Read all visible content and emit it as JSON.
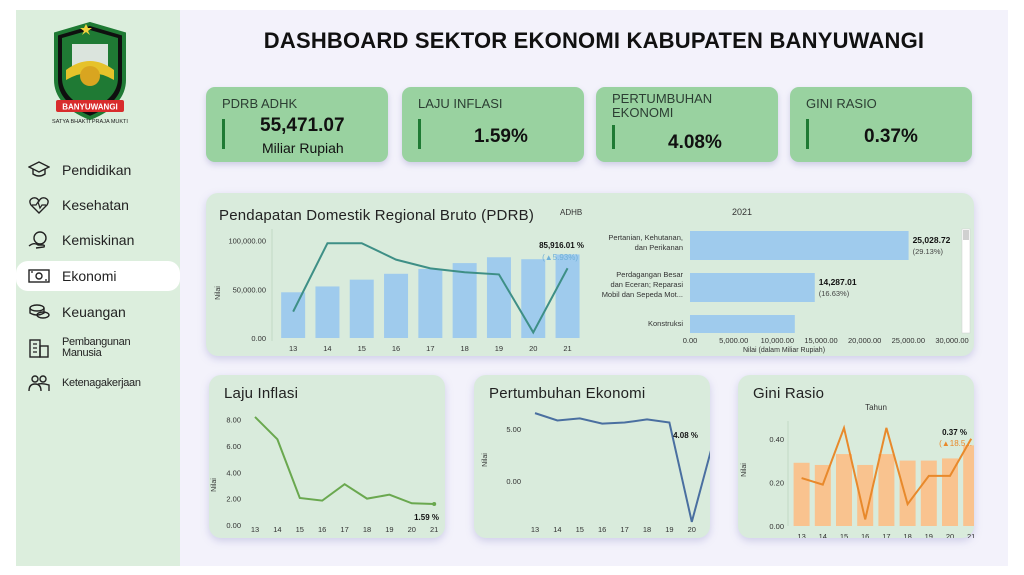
{
  "title": "DASHBOARD SEKTOR EKONOMI KABUPATEN BANYUWANGI",
  "logo": {
    "banner": "BANYUWANGI",
    "motto": "SATYA BHAKTI PRAJA MUKTI"
  },
  "sidebar": {
    "items": [
      {
        "label": "Pendidikan",
        "icon": "graduation-cap-icon"
      },
      {
        "label": "Kesehatan",
        "icon": "heart-pulse-icon"
      },
      {
        "label": "Kemiskinan",
        "icon": "hand-coins-icon"
      },
      {
        "label": "Ekonomi",
        "icon": "money-icon",
        "active": true
      },
      {
        "label": "Keuangan",
        "icon": "coins-stack-icon"
      },
      {
        "label_line1": "Pembangunan",
        "label_line2": "Manusia",
        "icon": "building-icon"
      },
      {
        "label": "Ketenagakerjaan",
        "icon": "people-icon"
      }
    ]
  },
  "kpis": [
    {
      "title": "PDRB ADHK",
      "value": "55,471.07",
      "unit": "Miliar Rupiah"
    },
    {
      "title": "LAJU INFLASI",
      "value": "1.59%"
    },
    {
      "title_line1": "PERTUMBUHAN",
      "title_line2": "EKONOMI",
      "value": "4.08%"
    },
    {
      "title": "GINI RASIO",
      "value": "0.37%"
    }
  ],
  "colors": {
    "accent_green": "#99d2a0",
    "card_bg": "#d9ebdc",
    "bar_blue": "#9fcbed",
    "line_teal": "#3e8f86",
    "line_green": "#6aa84f",
    "line_navy": "#4a6fa0",
    "bar_orange": "#f9c38f",
    "line_orange": "#e8892b"
  },
  "chart_data": [
    {
      "id": "pdrb",
      "type": "bar",
      "title": "Pendapatan Domestik Regional Bruto (PDRB)",
      "legend_label": "ADHB",
      "ylabel": "Nilai",
      "categories": [
        "13",
        "14",
        "15",
        "16",
        "17",
        "18",
        "19",
        "20",
        "21"
      ],
      "series": [
        {
          "name": "Nilai",
          "values": [
            47000,
            53000,
            60000,
            66000,
            71000,
            77000,
            83000,
            81000,
            85916.01
          ]
        },
        {
          "name": "Pertumbuhan",
          "type": "line",
          "values": [
            -2,
            10.5,
            10.5,
            7.5,
            5.9,
            5.2,
            4.8,
            -5.8,
            5.93
          ]
        }
      ],
      "yticks": [
        "100,000.00",
        "50,000.00",
        "0.00"
      ],
      "ylim": [
        0,
        110000
      ],
      "annotation": {
        "value": "85,916.01 %",
        "change": "(▲5.93%)"
      }
    },
    {
      "id": "sektor",
      "type": "bar",
      "orientation": "horizontal",
      "title": "2021",
      "xlabel": "Nilai (dalam Miliar Rupiah)",
      "categories": [
        {
          "line1": "Pertanian, Kehutanan,",
          "line2": "dan Perikanan"
        },
        {
          "line1": "Perdagangan Besar",
          "line2": "dan Eceran; Reparasi",
          "line3": "Mobil dan Sepeda Mot..."
        },
        {
          "line1": "Konstruksi"
        }
      ],
      "values": [
        25028.72,
        14287.01,
        12000
      ],
      "value_labels": [
        "25,028.72",
        "14,287.01",
        ""
      ],
      "share_labels": [
        "(29.13%)",
        "(16.63%)",
        ""
      ],
      "xticks": [
        "0.00",
        "5,000.00",
        "10,000.00",
        "15,000.00",
        "20,000.00",
        "25,000.00",
        "30,000.00"
      ],
      "xlim": [
        0,
        30000
      ]
    },
    {
      "id": "inflasi",
      "type": "line",
      "title": "Laju Inflasi",
      "ylabel": "Nilai",
      "categories": [
        "13",
        "14",
        "15",
        "16",
        "17",
        "18",
        "19",
        "20",
        "21"
      ],
      "values": [
        8.2,
        6.5,
        2.05,
        1.85,
        3.1,
        2.0,
        2.3,
        1.65,
        1.59
      ],
      "yticks": [
        "8.00",
        "6.00",
        "4.00",
        "2.00",
        "0.00"
      ],
      "ylim": [
        0,
        8.5
      ],
      "end_label": "1.59 %"
    },
    {
      "id": "pertumbuhan",
      "type": "line",
      "title": "Pertumbuhan Ekonomi",
      "ylabel": "Nilai",
      "categories": [
        "13",
        "14",
        "15",
        "16",
        "17",
        "18",
        "19",
        "20",
        "21"
      ],
      "values": [
        6.5,
        5.8,
        6.0,
        5.5,
        5.6,
        5.9,
        5.6,
        -3.9,
        4.08
      ],
      "yticks": [
        "5.00",
        "0.00"
      ],
      "ylim": [
        -4.2,
        6.8
      ],
      "end_label": "4.08 %"
    },
    {
      "id": "gini",
      "type": "bar",
      "title": "Gini Rasio",
      "subtitle": "Tahun",
      "ylabel": "Nilai",
      "categories": [
        "13",
        "14",
        "15",
        "16",
        "17",
        "18",
        "19",
        "20",
        "21"
      ],
      "series": [
        {
          "name": "Nilai",
          "values": [
            0.29,
            0.28,
            0.33,
            0.28,
            0.33,
            0.3,
            0.3,
            0.31,
            0.37
          ]
        },
        {
          "name": "Perubahan",
          "type": "line",
          "values": [
            0.22,
            0.19,
            0.45,
            0.03,
            0.45,
            0.1,
            0.23,
            0.23,
            0.4
          ]
        }
      ],
      "yticks": [
        "0.40",
        "0.20",
        "0.00"
      ],
      "ylim": [
        0,
        0.5
      ],
      "annotation": {
        "value": "0.37 %",
        "change": "(▲18.5..."
      }
    }
  ]
}
